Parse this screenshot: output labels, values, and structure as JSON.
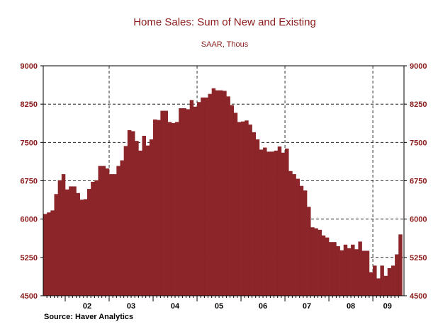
{
  "chart_data": {
    "type": "bar",
    "title": "Home Sales: Sum of New and Existing",
    "subtitle": "SAAR, Thous",
    "source": "Source: Haver Analytics",
    "xlabel": "",
    "ylabel": "",
    "ylim": [
      4500,
      9000
    ],
    "yticks": [
      "9000",
      "8250",
      "7500",
      "6750",
      "6000",
      "5250",
      "4500"
    ],
    "ytick_values": [
      9000,
      8250,
      7500,
      6750,
      6000,
      5250,
      4500
    ],
    "xticks": [
      "02",
      "03",
      "04",
      "05",
      "06",
      "07",
      "08",
      "09"
    ],
    "bar_color": "#8b2529",
    "label_color": "#8b1a1a",
    "grid": "dashed",
    "start": "2001-07",
    "values": [
      6100,
      6130,
      6170,
      6490,
      6760,
      6880,
      6580,
      6640,
      6640,
      6510,
      6380,
      6390,
      6590,
      6730,
      6760,
      7040,
      7040,
      6990,
      6880,
      6880,
      7040,
      7150,
      7430,
      7740,
      7720,
      7530,
      7340,
      7630,
      7440,
      7560,
      7950,
      7940,
      8120,
      8120,
      7900,
      7880,
      7900,
      8170,
      8170,
      8150,
      8330,
      8200,
      8290,
      8380,
      8380,
      8450,
      8560,
      8520,
      8520,
      8510,
      8400,
      8230,
      8080,
      7900,
      7910,
      7930,
      7850,
      7700,
      7560,
      7360,
      7400,
      7320,
      7320,
      7340,
      7420,
      7300,
      7380,
      6940,
      6880,
      6790,
      6650,
      6560,
      6240,
      5840,
      5820,
      5790,
      5680,
      5640,
      5550,
      5550,
      5470,
      5390,
      5500,
      5430,
      5500,
      5410,
      5560,
      5380,
      5380,
      4960,
      5090,
      4840,
      5090,
      4890,
      5040,
      5090,
      5310,
      5700
    ]
  }
}
